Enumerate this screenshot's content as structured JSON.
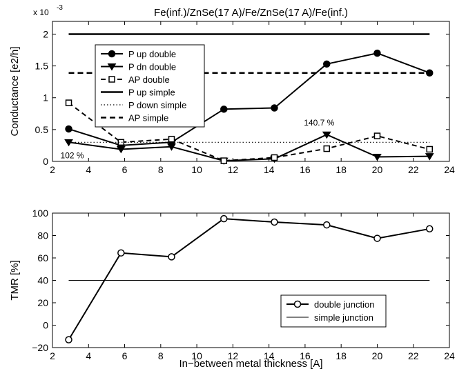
{
  "chart_data": [
    {
      "type": "line",
      "title": "Fe(inf.)/ZnSe(17 A)/Fe/ZnSe(17 A)/Fe(inf.)",
      "xlabel": "",
      "ylabel": "Conductance [e2/h]",
      "exponent_label": "x 10",
      "exponent_power": "-3",
      "xlim": [
        2,
        24
      ],
      "ylim": [
        0,
        2.2
      ],
      "xticks": [
        "2",
        "4",
        "6",
        "8",
        "10",
        "12",
        "14",
        "16",
        "18",
        "20",
        "22",
        "24"
      ],
      "yticks": [
        "0",
        "0.5",
        "1",
        "1.5",
        "2"
      ],
      "grid": false,
      "legend_position": "upper-left-center",
      "series": [
        {
          "name": "P up double",
          "style": "solid-filled-circle",
          "x": [
            2.9,
            5.8,
            8.6,
            11.5,
            14.3,
            17.2,
            20.0,
            22.9
          ],
          "y": [
            0.51,
            0.25,
            0.3,
            0.82,
            0.84,
            1.53,
            1.7,
            1.39
          ]
        },
        {
          "name": "P dn double",
          "style": "solid-triangle-down",
          "x": [
            2.9,
            5.8,
            8.6,
            11.5,
            14.3,
            17.2,
            20.0,
            22.9
          ],
          "y": [
            0.3,
            0.19,
            0.23,
            0.01,
            0.04,
            0.42,
            0.07,
            0.08
          ]
        },
        {
          "name": "AP double",
          "style": "dashed-open-square",
          "x": [
            2.9,
            5.8,
            8.6,
            11.5,
            14.3,
            17.2,
            20.0,
            22.9
          ],
          "y": [
            0.92,
            0.3,
            0.35,
            0.01,
            0.06,
            0.2,
            0.4,
            0.19
          ]
        },
        {
          "name": "P up simple",
          "style": "solid-thick",
          "x": [
            2.9,
            22.9
          ],
          "y": [
            2.0,
            2.0
          ]
        },
        {
          "name": "P down simple",
          "style": "dotted",
          "x": [
            2.9,
            22.9
          ],
          "y": [
            0.3,
            0.3
          ]
        },
        {
          "name": "AP simple",
          "style": "dashed-thick",
          "x": [
            2.9,
            22.9
          ],
          "y": [
            1.39,
            1.39
          ]
        }
      ],
      "annotations": [
        {
          "text": "102 %",
          "x": 2.9,
          "y": 0.3
        },
        {
          "text": "140.7 %",
          "x": 17.2,
          "y": 0.42
        }
      ]
    },
    {
      "type": "line",
      "title": "",
      "xlabel": "In−between metal thickness [A]",
      "ylabel": "TMR [%]",
      "xlim": [
        2,
        24
      ],
      "ylim": [
        -20,
        100
      ],
      "xticks": [
        "2",
        "4",
        "6",
        "8",
        "10",
        "12",
        "14",
        "16",
        "18",
        "20",
        "22",
        "24"
      ],
      "yticks": [
        "−20",
        "0",
        "20",
        "40",
        "60",
        "80",
        "100"
      ],
      "grid": false,
      "legend_position": "lower-right",
      "series": [
        {
          "name": "double junction",
          "style": "solid-open-circle",
          "x": [
            2.9,
            5.8,
            8.6,
            11.5,
            14.3,
            17.2,
            20.0,
            22.9
          ],
          "y": [
            -13,
            64.5,
            61,
            95,
            92,
            89.5,
            77.5,
            86
          ]
        },
        {
          "name": "simple junction",
          "style": "solid-thin",
          "x": [
            2.9,
            22.9
          ],
          "y": [
            40,
            40
          ]
        }
      ]
    }
  ]
}
